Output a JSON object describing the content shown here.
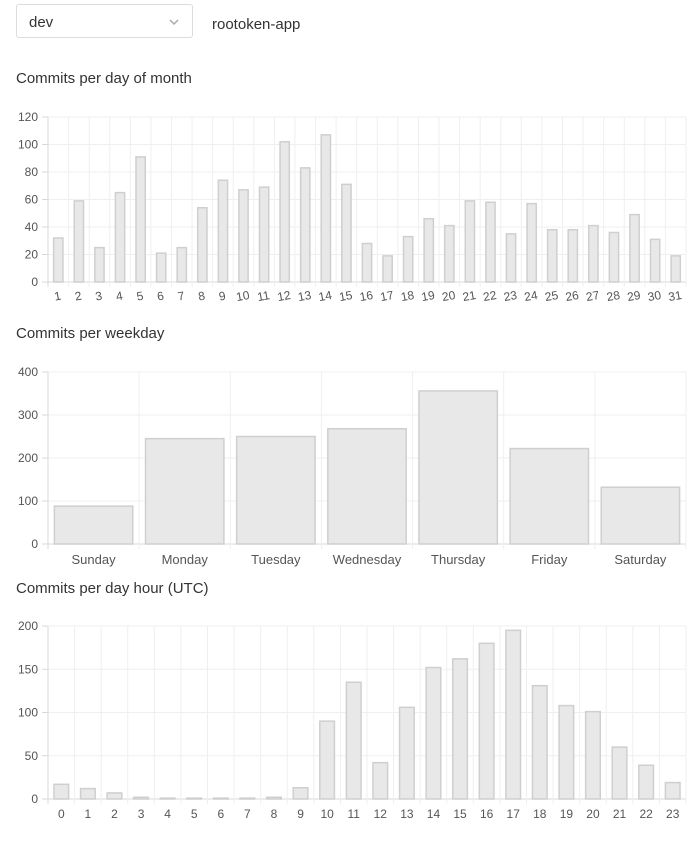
{
  "branch_select": {
    "value": "dev"
  },
  "repo": {
    "name": "rootoken-app"
  },
  "colors": {
    "bar_fill": "#e8e8e8",
    "bar_stroke": "#cfcfcf",
    "grid": "#efefef",
    "axis": "#d8d8d8"
  },
  "chart_data": [
    {
      "type": "bar",
      "title": "Commits per day of month",
      "categories": [
        "1",
        "2",
        "3",
        "4",
        "5",
        "6",
        "7",
        "8",
        "9",
        "10",
        "11",
        "12",
        "13",
        "14",
        "15",
        "16",
        "17",
        "18",
        "19",
        "20",
        "21",
        "22",
        "23",
        "24",
        "25",
        "26",
        "27",
        "28",
        "29",
        "30",
        "31"
      ],
      "values": [
        32,
        59,
        25,
        65,
        91,
        21,
        25,
        54,
        74,
        67,
        69,
        102,
        83,
        107,
        71,
        28,
        19,
        33,
        46,
        41,
        59,
        58,
        35,
        57,
        38,
        38,
        41,
        36,
        49,
        31,
        19
      ],
      "ylim": [
        0,
        120
      ],
      "yticks": [
        0,
        20,
        40,
        60,
        80,
        100,
        120
      ],
      "grid": true
    },
    {
      "type": "bar",
      "title": "Commits per weekday",
      "categories": [
        "Sunday",
        "Monday",
        "Tuesday",
        "Wednesday",
        "Thursday",
        "Friday",
        "Saturday"
      ],
      "values": [
        88,
        245,
        250,
        268,
        356,
        222,
        132
      ],
      "ylim": [
        0,
        400
      ],
      "yticks": [
        0,
        100,
        200,
        300,
        400
      ],
      "grid": true
    },
    {
      "type": "bar",
      "title": "Commits per day hour (UTC)",
      "categories": [
        "0",
        "1",
        "2",
        "3",
        "4",
        "5",
        "6",
        "7",
        "8",
        "9",
        "10",
        "11",
        "12",
        "13",
        "14",
        "15",
        "16",
        "17",
        "18",
        "19",
        "20",
        "21",
        "22",
        "23"
      ],
      "values": [
        17,
        12,
        7,
        2,
        1,
        1,
        1,
        1,
        2,
        13,
        90,
        135,
        42,
        106,
        152,
        162,
        180,
        195,
        131,
        108,
        101,
        60,
        39,
        19
      ],
      "ylim": [
        0,
        200
      ],
      "yticks": [
        0,
        50,
        100,
        150,
        200
      ],
      "grid": true
    }
  ]
}
